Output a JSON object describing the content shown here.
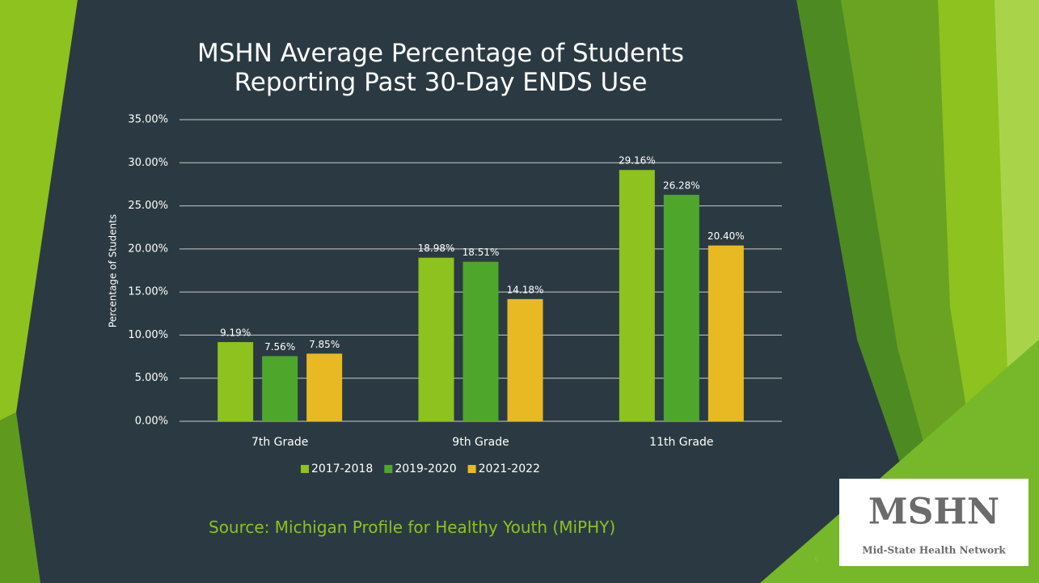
{
  "chart_data": {
    "type": "bar",
    "title": "MSHN Average Percentage of Students Reporting Past 30-Day ENDS Use",
    "y_label": "Percentage of Students",
    "categories": [
      "7th Grade",
      "9th Grade",
      "11th Grade"
    ],
    "series": [
      {
        "name": "2017-2018",
        "color": "#8dc21f",
        "values": [
          9.19,
          18.98,
          29.16
        ],
        "value_labels": [
          "9.19%",
          "18.98%",
          "29.16%"
        ]
      },
      {
        "name": "2019-2020",
        "color": "#4ea72a",
        "values": [
          7.56,
          18.51,
          26.28
        ],
        "value_labels": [
          "7.56%",
          "18.51%",
          "26.28%"
        ]
      },
      {
        "name": "2021-2022",
        "color": "#e8b923",
        "values": [
          7.85,
          14.18,
          20.4
        ],
        "value_labels": [
          "7.85%",
          "14.18%",
          "20.40%"
        ]
      }
    ],
    "ylim": [
      0,
      35
    ],
    "yticks": [
      {
        "value": 0,
        "label": "0.00%"
      },
      {
        "value": 5,
        "label": "5.00%"
      },
      {
        "value": 10,
        "label": "10.00%"
      },
      {
        "value": 15,
        "label": "15.00%"
      },
      {
        "value": 20,
        "label": "20.00%"
      },
      {
        "value": 25,
        "label": "25.00%"
      },
      {
        "value": 30,
        "label": "30.00%"
      },
      {
        "value": 35,
        "label": "35.00%"
      }
    ],
    "grid": true,
    "legend": "bottom"
  },
  "slide": {
    "source": "Source: Michigan Profile for Healthy Youth (MiPHY)",
    "page_number": "6",
    "logo": {
      "name": "MSHN",
      "tagline": "Mid-State Health Network"
    }
  }
}
